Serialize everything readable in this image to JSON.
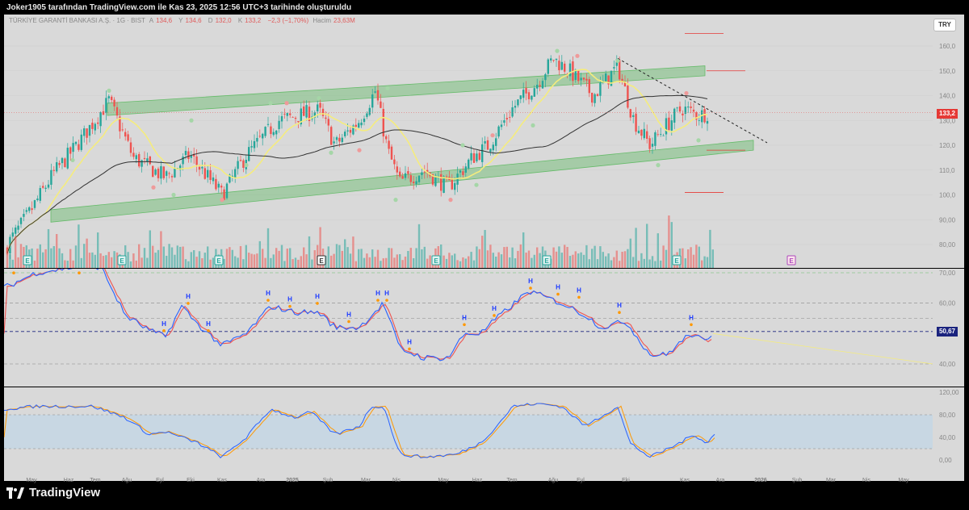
{
  "header": {
    "snapshot_text": "Joker1905 tarafından TradingView.com ile Kas 23, 2025 12:56 UTC+3 tarihinde oluşturuldu"
  },
  "symbol_legend": {
    "name": "TÜRKİYE GARANTİ BANKASI A.Ş. · 1G · BIST",
    "open_label": "A",
    "open": "134,6",
    "high_label": "Y",
    "high": "134,6",
    "low_label": "D",
    "low": "132,0",
    "close_label": "K",
    "close": "133,2",
    "change": "−2,3 (−1,70%)",
    "volume_label": "Hacim",
    "volume": "23,63M"
  },
  "currency_button": "TRY",
  "price_axis": {
    "ticks": [
      "160,0",
      "150,0",
      "140,0",
      "130,0",
      "120,0",
      "110,0",
      "100,0",
      "90,00",
      "80,00"
    ],
    "last_price": "133,2"
  },
  "rsi_axis": {
    "ticks": [
      "70,00",
      "60,00",
      "40,00"
    ],
    "current": "50,67"
  },
  "stoch_axis": {
    "ticks": [
      "120,00",
      "80,00",
      "40,00",
      "0,00"
    ]
  },
  "time_axis": [
    "May",
    "Haz",
    "Tem",
    "Ağu",
    "Eyl",
    "Eki",
    "Kas",
    "Ara",
    "2025",
    "Şub",
    "Mar",
    "Nis",
    "May",
    "Haz",
    "Tem",
    "Ağu",
    "Eyl",
    "Eki",
    "Kas",
    "Ara",
    "2026",
    "Şub",
    "Mar",
    "Nis",
    "May"
  ],
  "marker_labels": {
    "earnings": "E",
    "high_marker": "H"
  },
  "brand": "TradingView",
  "colors": {
    "up": "#26a69a",
    "down": "#ef5350",
    "channel": "#66bb6a",
    "ma_short": "#f5ec7d",
    "ma_long": "#333333",
    "rsi_fast": "#2962ff",
    "rsi_slow": "#ef5350",
    "price_tag": "#e53935",
    "rsi_tag": "#1a237e"
  }
}
